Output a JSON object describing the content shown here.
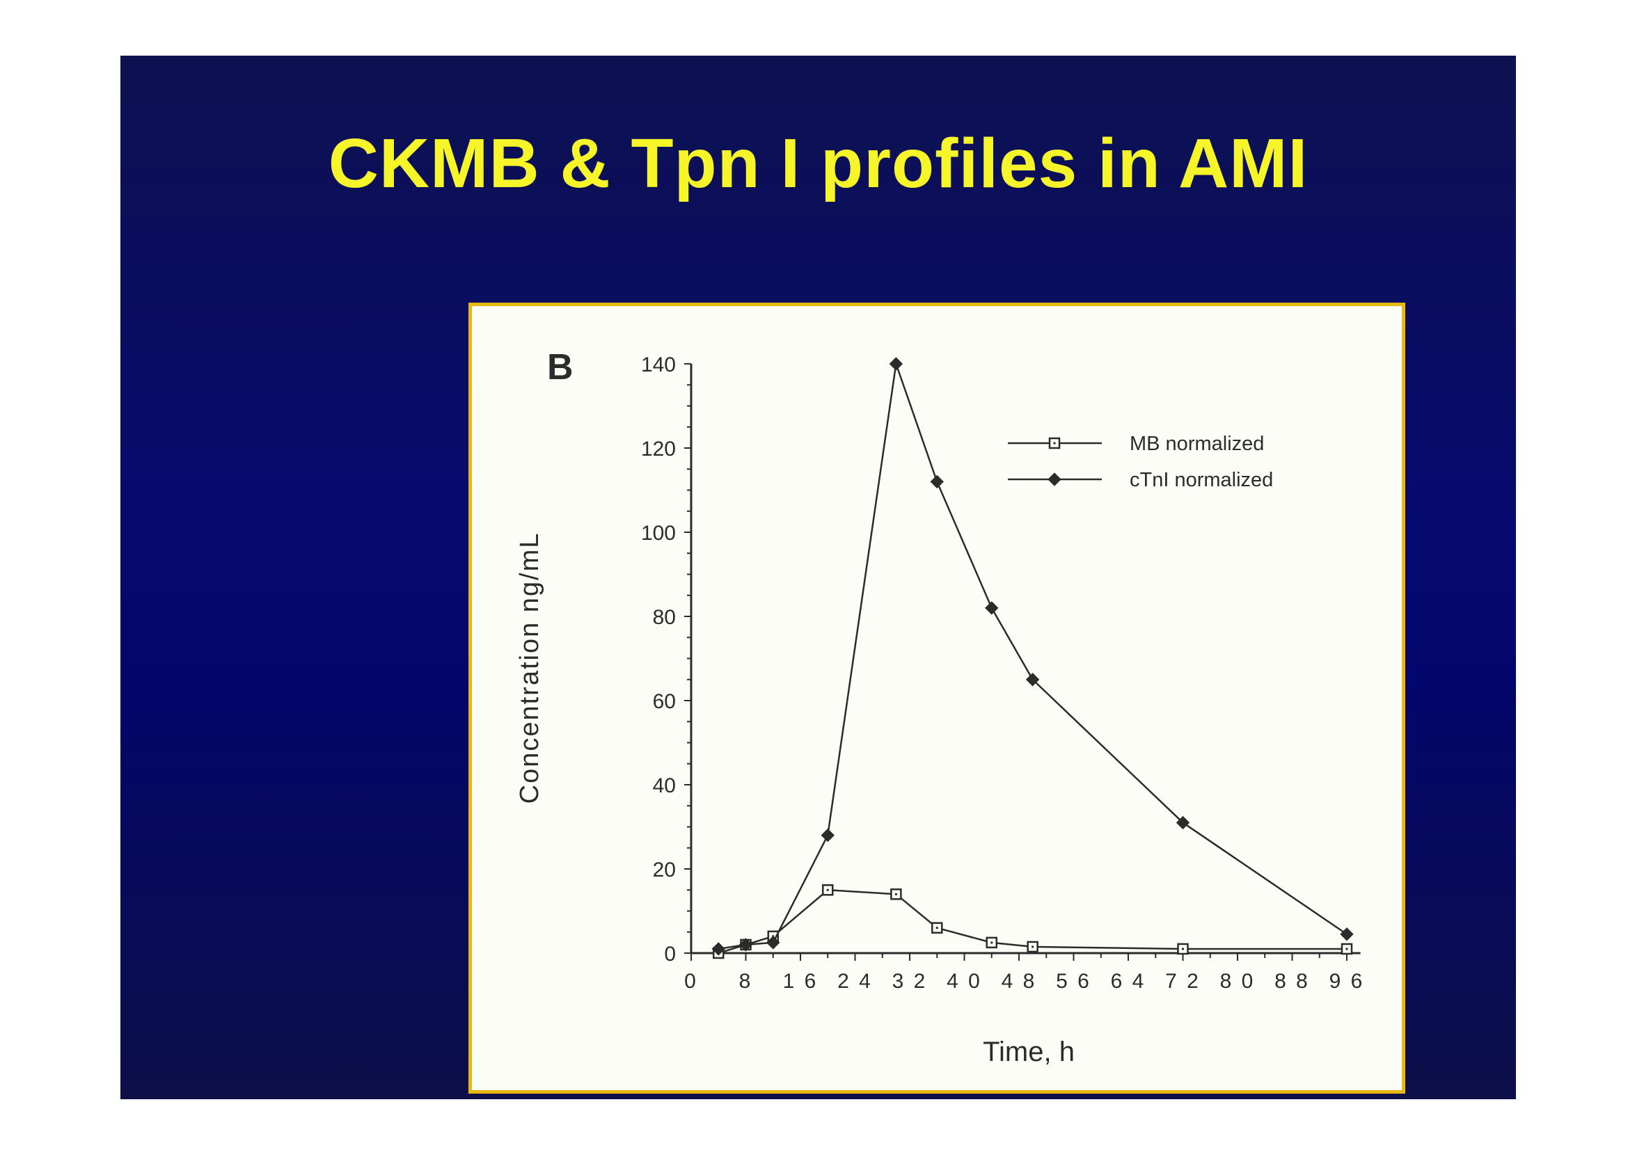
{
  "slide": {
    "title": "CKMB & Tpn I profiles in AMI"
  },
  "colors": {
    "background": "#060a6e",
    "title": "#f5f52a",
    "frame_border": "#e8b810",
    "figure_background": "#fdfdf8",
    "ink": "#2b2b2b"
  },
  "chart_data": {
    "type": "line",
    "panel_label": "B",
    "xlabel": "Time,  h",
    "ylabel": "Concentration  ng/mL",
    "xlim": [
      0,
      98
    ],
    "ylim": [
      0,
      140
    ],
    "x_ticks": [
      0,
      8,
      16,
      24,
      32,
      40,
      48,
      56,
      64,
      72,
      80,
      88,
      96
    ],
    "x_tick_labels": [
      "0",
      "8",
      "1 6",
      "2 4",
      "3 2",
      "4 0",
      "4 8",
      "5 6",
      "6 4",
      "7 2",
      "8 0",
      "8 8",
      "9 6"
    ],
    "y_ticks": [
      0,
      20,
      40,
      60,
      80,
      100,
      120,
      140
    ],
    "y_tick_labels": [
      "0",
      "20",
      "40",
      "60",
      "80",
      "100",
      "120",
      "140"
    ],
    "legend_position": "top-right",
    "grid": false,
    "series": [
      {
        "name": "MB normalized",
        "marker": "open-square",
        "points": [
          [
            4,
            0
          ],
          [
            8,
            2
          ],
          [
            12,
            4
          ],
          [
            20,
            15
          ],
          [
            30,
            14
          ],
          [
            36,
            6
          ],
          [
            44,
            2.5
          ],
          [
            50,
            1.5
          ],
          [
            72,
            1
          ],
          [
            96,
            1
          ]
        ]
      },
      {
        "name": "cTnI normalized",
        "marker": "filled-diamond",
        "points": [
          [
            4,
            1
          ],
          [
            8,
            2
          ],
          [
            12,
            2.5
          ],
          [
            20,
            28
          ],
          [
            30,
            140
          ],
          [
            36,
            112
          ],
          [
            44,
            82
          ],
          [
            50,
            65
          ],
          [
            72,
            31
          ],
          [
            96,
            4.5
          ]
        ]
      }
    ]
  }
}
